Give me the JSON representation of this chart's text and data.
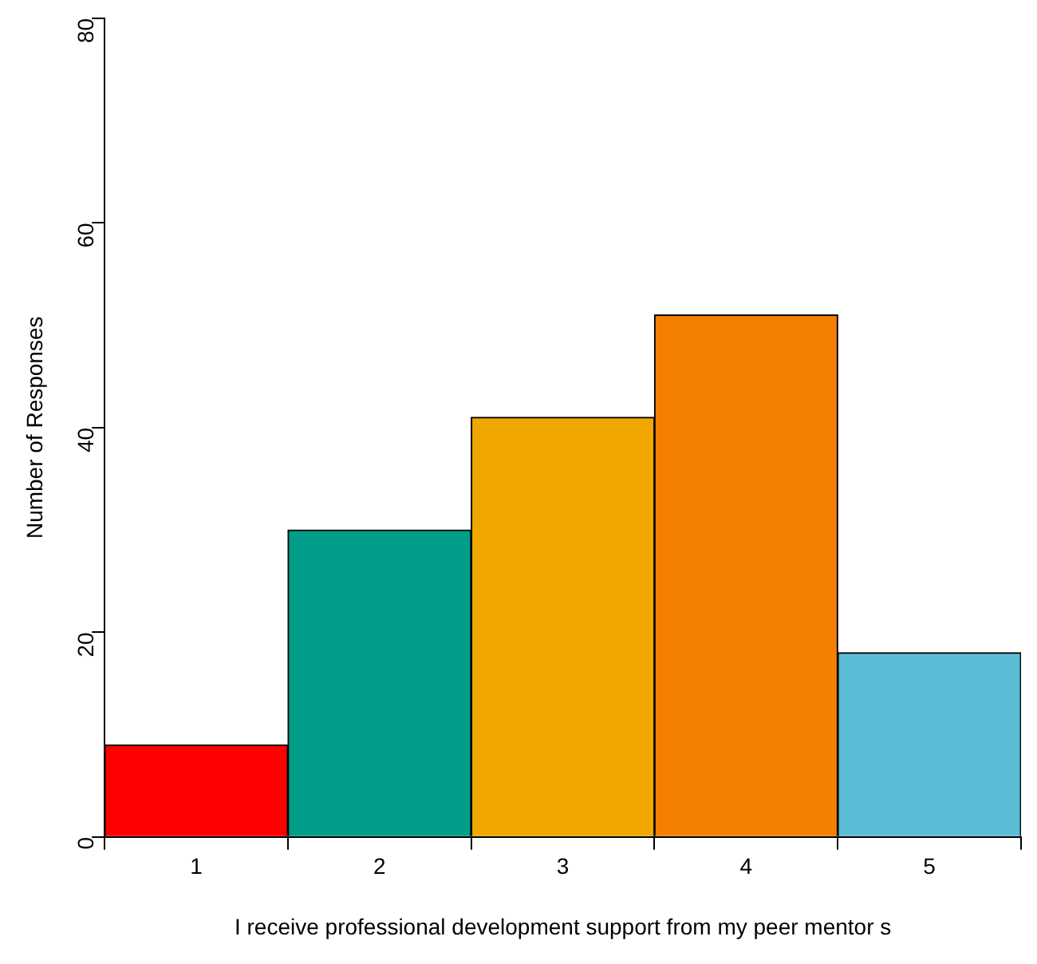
{
  "chart_data": {
    "type": "bar",
    "xlabel": "I receive professional development support from my peer mentor s",
    "ylabel": "Number of Responses",
    "categories": [
      "1",
      "2",
      "3",
      "4",
      "5"
    ],
    "values": [
      9,
      30,
      41,
      51,
      18
    ],
    "colors": [
      "#ff0000",
      "#009e89",
      "#f0a800",
      "#f57f00",
      "#5bbcd6"
    ],
    "ylim": [
      0,
      80
    ],
    "yticks": [
      0,
      20,
      40,
      60,
      80
    ]
  }
}
